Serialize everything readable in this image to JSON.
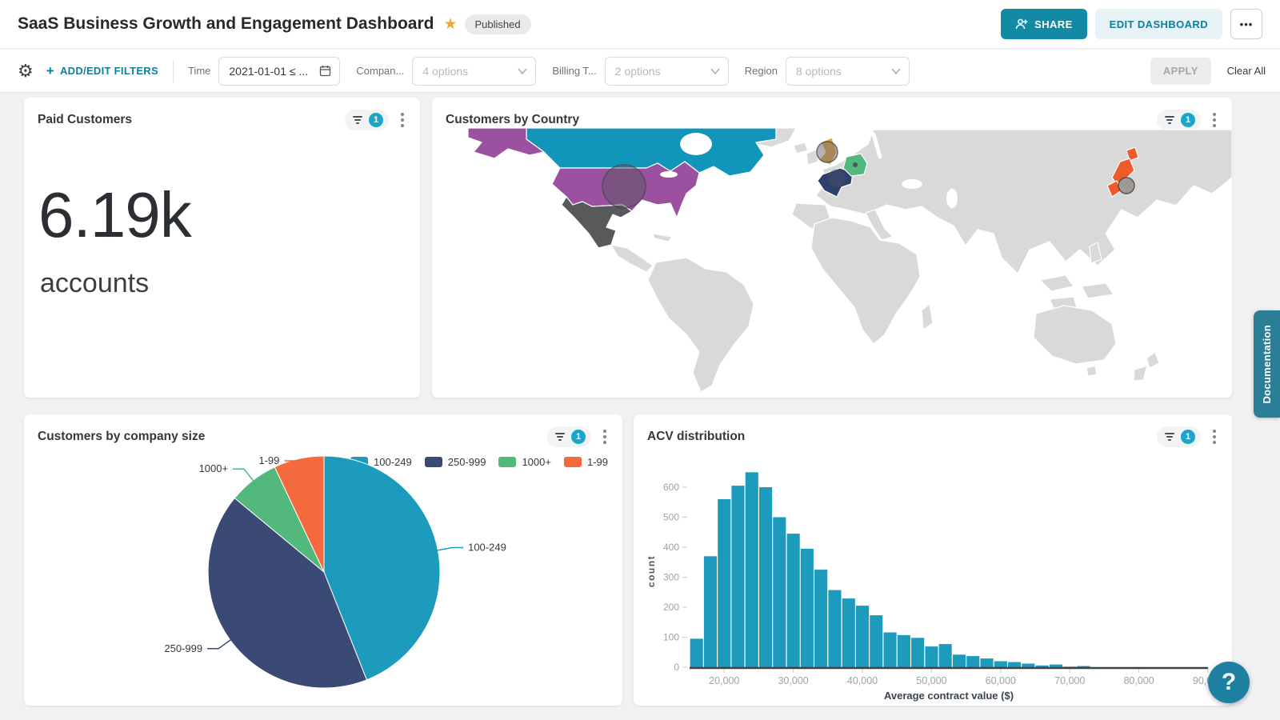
{
  "header": {
    "title": "SaaS Business Growth and Engagement Dashboard",
    "published_label": "Published",
    "share_label": "SHARE",
    "edit_label": "EDIT DASHBOARD",
    "more_label": "•••"
  },
  "filter_bar": {
    "add_edit_label": "ADD/EDIT FILTERS",
    "plus_label": "+",
    "filters": [
      {
        "label": "Time",
        "type": "date",
        "value": "2021-01-01 ≤ ..."
      },
      {
        "label": "Compan...",
        "type": "select",
        "value": "4 options"
      },
      {
        "label": "Billing T...",
        "type": "select",
        "value": "2 options"
      },
      {
        "label": "Region",
        "type": "select",
        "value": "8 options"
      }
    ],
    "apply_label": "APPLY",
    "clear_label": "Clear All"
  },
  "widgets": {
    "paid_customers": {
      "title": "Paid Customers",
      "filter_count": "1",
      "value": "6.19k",
      "unit": "accounts"
    },
    "customers_by_country": {
      "title": "Customers by Country",
      "filter_count": "1"
    },
    "customers_by_company_size": {
      "title": "Customers by company size",
      "filter_count": "1"
    },
    "acv_distribution": {
      "title": "ACV distribution",
      "filter_count": "1"
    }
  },
  "side": {
    "documentation_label": "Documentation",
    "help_label": "?"
  },
  "colors": {
    "brand_teal": "#1289a5",
    "badge_teal": "#18a7cb",
    "accent_text": "#0f7f99"
  },
  "chart_data": [
    {
      "id": "customers_by_country",
      "type": "heatmap",
      "title": "Customers by Country",
      "default_land_color": "#d9d9d9",
      "countries": [
        {
          "name": "Canada",
          "color": "#1295ba"
        },
        {
          "name": "United States",
          "color": "#9b51a0",
          "bubble": "large"
        },
        {
          "name": "Mexico",
          "color": "#58595b"
        },
        {
          "name": "United Kingdom",
          "color": "#dfa33d",
          "bubble": "medium"
        },
        {
          "name": "France",
          "color": "#2e3f6d",
          "bubble": "small"
        },
        {
          "name": "Germany",
          "color": "#52b87d",
          "bubble": "dot"
        },
        {
          "name": "Japan",
          "color": "#f05b2a",
          "bubble": "medium"
        }
      ]
    },
    {
      "id": "customers_by_company_size",
      "type": "pie",
      "title": "Customers by company size",
      "labels": [
        "100-249",
        "250-999",
        "1000+",
        "1-99"
      ],
      "values": [
        44,
        42,
        7,
        7
      ],
      "colors": [
        "#1d9bbc",
        "#3b4a75",
        "#53b87c",
        "#f4693e"
      ],
      "legend_position": "top-right"
    },
    {
      "id": "acv_distribution",
      "type": "bar",
      "title": "ACV distribution",
      "xlabel": "Average contract value ($)",
      "ylabel": "count",
      "bin_start": 15000,
      "bin_width": 2000,
      "counts": [
        95,
        370,
        560,
        605,
        650,
        600,
        500,
        445,
        395,
        325,
        257,
        229,
        205,
        173,
        116,
        107,
        98,
        69,
        77,
        42,
        37,
        29,
        20,
        17,
        12,
        6,
        9,
        2,
        4,
        0
      ],
      "xlim": [
        15000,
        90000
      ],
      "ylim": [
        0,
        660
      ],
      "x_ticks": [
        20000,
        30000,
        40000,
        50000,
        60000,
        70000,
        80000,
        90000
      ],
      "y_ticks": [
        0,
        100,
        200,
        300,
        400,
        500,
        600
      ],
      "bar_color": "#1d9bbc",
      "grid": false
    }
  ]
}
